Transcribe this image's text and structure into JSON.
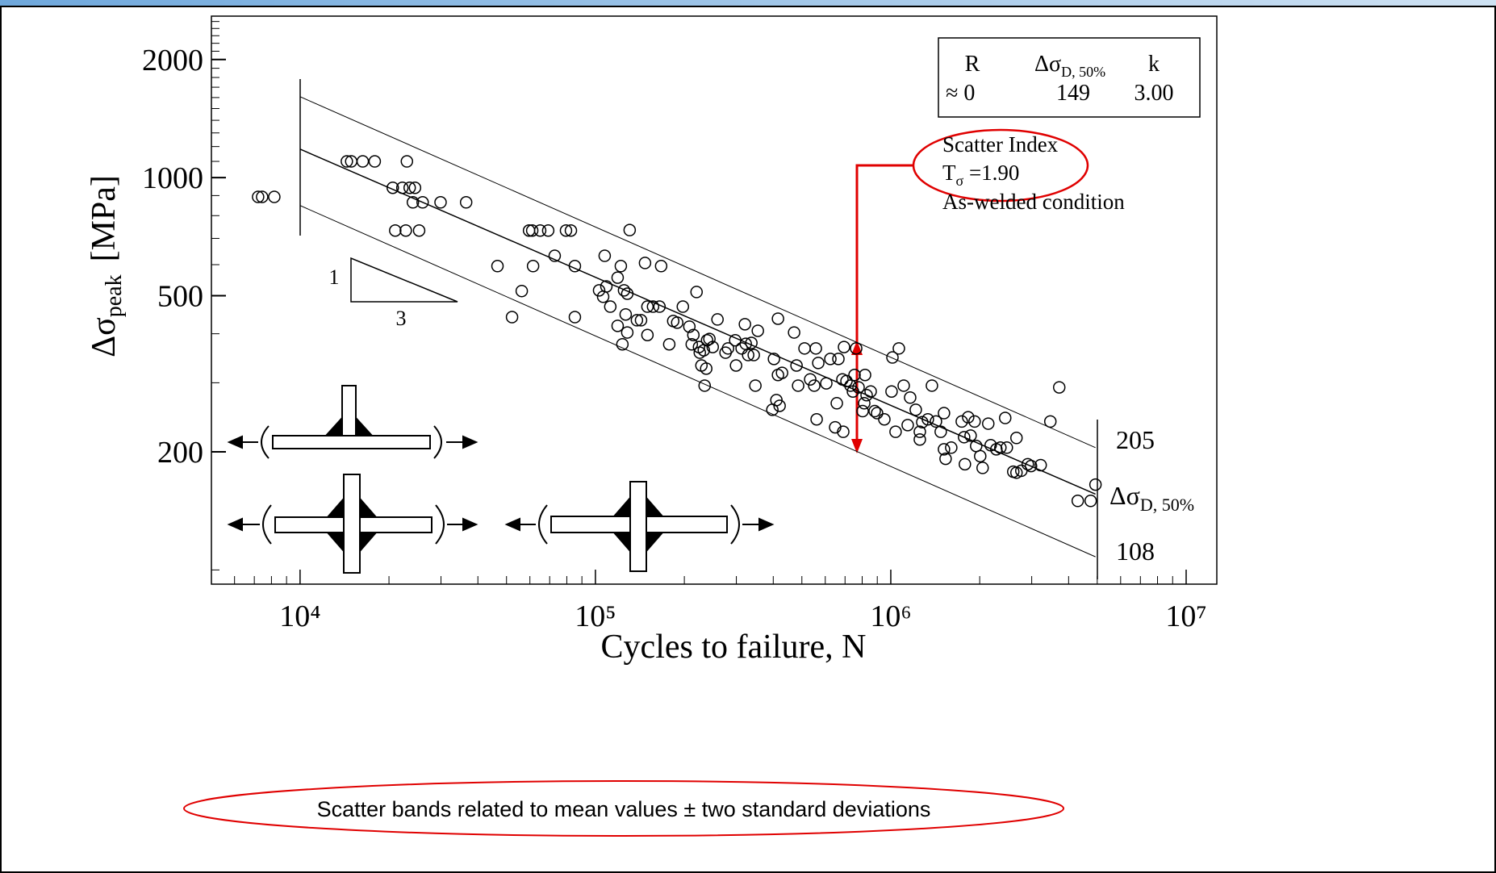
{
  "chart_data": {
    "type": "scatter",
    "xlabel": {
      "main": "Cycles to failure,  N"
    },
    "ylabel": {
      "main": "Δσ",
      "sub": "peak",
      "unit": "[MPa]"
    },
    "xlog": true,
    "ylog": true,
    "xlim": [
      5010,
      12700000
    ],
    "ylim": [
      92,
      2580
    ],
    "xticks": [
      {
        "value": 10000,
        "label": "10⁴"
      },
      {
        "value": 100000,
        "label": "10⁵"
      },
      {
        "value": 1000000,
        "label": "10⁶"
      },
      {
        "value": 10000000,
        "label": "10⁷"
      }
    ],
    "xminorticks": [
      6000,
      7000,
      8000,
      9000,
      20000,
      30000,
      40000,
      50000,
      60000,
      70000,
      80000,
      90000,
      200000,
      300000,
      400000,
      500000,
      600000,
      700000,
      800000,
      900000,
      2000000,
      3000000,
      4000000,
      5000000,
      6000000,
      7000000,
      8000000,
      9000000
    ],
    "yticks": [
      200,
      500,
      1000,
      2000
    ],
    "yminorticks": [
      100,
      300,
      400,
      600,
      700,
      800,
      900,
      1100,
      1200,
      1300,
      1400,
      1500,
      1600,
      1700,
      1800,
      1900,
      2100,
      2200,
      2300,
      2400,
      2500
    ],
    "color": "#000000",
    "x": [
      7210,
      7440,
      8180,
      14400,
      14900,
      16300,
      17900,
      23000,
      20600,
      22200,
      23500,
      24500,
      24100,
      26000,
      29900,
      36500,
      21000,
      22800,
      25300,
      46600,
      56300,
      52200,
      59600,
      61100,
      65000,
      69200,
      79500,
      82600,
      61500,
      72800,
      85200,
      85200,
      130600,
      107500,
      121900,
      147200,
      166900,
      102900,
      106200,
      108900,
      112300,
      118900,
      125000,
      128200,
      118900,
      128200,
      123400,
      126600,
      138200,
      142700,
      150000,
      156700,
      164800,
      150000,
      177800,
      189200,
      183400,
      197700,
      208000,
      220000,
      211900,
      214600,
      224200,
      225600,
      232800,
      238800,
      243200,
      249500,
      259000,
      228500,
      237200,
      234300,
      281100,
      275800,
      297400,
      312700,
      322800,
      337300,
      328900,
      343600,
      299300,
      320700,
      354700,
      415000,
      470600,
      348000,
      402200,
      415000,
      428400,
      479600,
      510500,
      557500,
      485600,
      409900,
      420300,
      533500,
      550600,
      568200,
      604900,
      624300,
      664700,
      694500,
      763400,
      685900,
      707900,
      730500,
      744400,
      753800,
      777900,
      818100,
      828300,
      813000,
      854800,
      802800,
      881900,
      951000,
      648200,
      690200,
      561000,
      656500,
      1013000,
      1065000,
      1106000,
      1006000,
      1038000,
      1141000,
      1163000,
      1215000,
      1254000,
      1335000,
      1378000,
      1422000,
      1476000,
      1514000,
      1254000,
      1278000,
      1514000,
      1533000,
      1602000,
      1739000,
      1771000,
      1828000,
      1863000,
      1922000,
      1946000,
      2008000,
      2138000,
      2179000,
      2277000,
      2350000,
      2440000,
      2471000,
      2598000,
      2664000,
      2767000,
      2909000,
      2984000,
      3217000,
      2664000,
      1782000,
      2046000,
      3718000,
      3469000,
      4295000,
      4750000,
      4932000,
      898700,
      397200
    ],
    "values": [
      893,
      893,
      893,
      1100,
      1100,
      1100,
      1100,
      1100,
      942,
      942,
      942,
      942,
      865,
      865,
      865,
      865,
      733,
      733,
      733,
      595,
      514,
      441,
      733,
      733,
      733,
      733,
      733,
      733,
      595,
      632,
      595,
      441,
      735,
      632,
      595,
      606,
      595,
      516,
      497,
      528,
      469,
      556,
      516,
      506,
      419,
      403,
      376,
      448,
      433,
      433,
      469,
      469,
      469,
      397,
      376,
      427,
      431,
      469,
      417,
      511,
      376,
      397,
      370,
      358,
      363,
      385,
      388,
      370,
      435,
      332,
      326,
      295,
      367,
      358,
      385,
      367,
      377,
      379,
      353,
      353,
      332,
      423,
      407,
      437,
      403,
      295,
      345,
      314,
      318,
      332,
      367,
      367,
      295,
      271,
      262,
      306,
      295,
      337,
      299,
      345,
      345,
      370,
      367,
      306,
      303,
      295,
      285,
      314,
      292,
      314,
      279,
      266,
      285,
      254,
      254,
      242,
      231,
      225,
      242,
      266,
      348,
      367,
      295,
      285,
      225,
      234,
      275,
      256,
      225,
      242,
      295,
      239,
      225,
      251,
      215,
      238,
      203,
      192,
      205,
      239,
      218,
      245,
      220,
      239,
      207,
      195,
      236,
      208,
      203,
      205,
      244,
      205,
      178,
      177,
      179,
      186,
      184,
      185,
      217,
      186,
      182,
      292,
      239,
      150,
      150,
      165,
      251,
      256
    ],
    "lines": [
      {
        "x": [
          10000,
          4932000
        ],
        "y": [
          1608,
          205
        ]
      },
      {
        "x": [
          10000,
          4932000
        ],
        "y": [
          1182,
          156
        ]
      },
      {
        "x": [
          10000,
          4932000
        ],
        "y": [
          849,
          108
        ]
      }
    ],
    "table": {
      "header": [
        "R",
        {
          "main": "Δσ",
          "sub": "D, 50%"
        },
        "k"
      ],
      "row": [
        "≈ 0",
        "149",
        "3.00"
      ]
    },
    "scatter_note": {
      "line1": "Scatter Index",
      "t_main": "T",
      "t_sub": "σ",
      "t_value": " =1.90",
      "line3": "As-welded condition"
    },
    "band_label": {
      "main": "Δσ",
      "sub": "D, 50%"
    },
    "slope": {
      "rise": "1",
      "run": "3"
    },
    "caption": "Scatter bands related to mean values ± two standard deviations"
  }
}
